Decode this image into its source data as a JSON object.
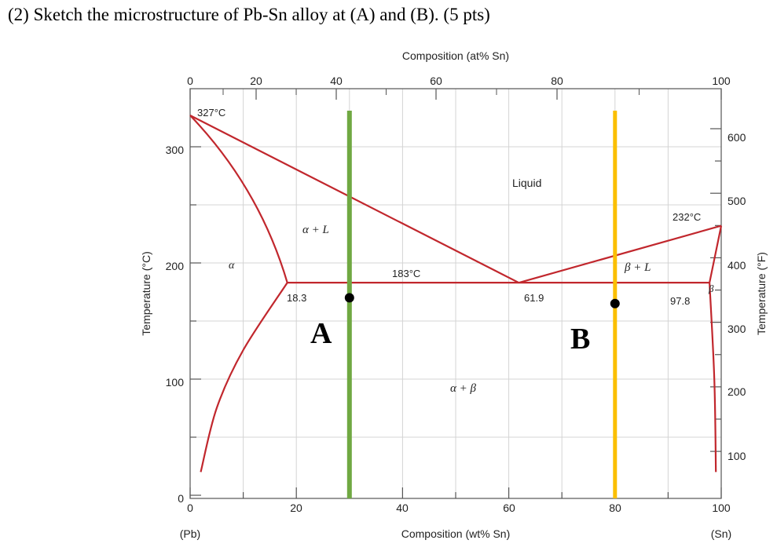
{
  "question": "(2) Sketch the microstructure of Pb-Sn alloy at (A) and (B). (5 pts)",
  "axes": {
    "top_title": "Composition (at% Sn)",
    "bottom_title": "Composition (wt% Sn)",
    "left_title": "Temperature (°C)",
    "right_title": "Temperature (°F)",
    "pb_label": "(Pb)",
    "sn_label": "(Sn)",
    "top_ticks": [
      {
        "label": "0",
        "value": 0
      },
      {
        "label": "20",
        "value": 20
      },
      {
        "label": "40",
        "value": 40
      },
      {
        "label": "60",
        "value": 60
      },
      {
        "label": "80",
        "value": 80
      },
      {
        "label": "100",
        "value": 100
      }
    ],
    "bottom_ticks": [
      "0",
      "20",
      "40",
      "60",
      "80",
      "100"
    ],
    "left_ticks": [
      "0",
      "100",
      "200",
      "300"
    ],
    "right_ticks": [
      "100",
      "200",
      "300",
      "400",
      "500",
      "600"
    ]
  },
  "labels": {
    "pb_melt": "327°C",
    "sn_melt": "232°C",
    "eutectic_temp": "183°C",
    "alpha_limit": "18.3",
    "eutectic_comp": "61.9",
    "beta_limit": "97.8",
    "liquid": "Liquid",
    "alpha_l": "α + L",
    "beta_l": "β + L",
    "alpha": "α",
    "beta": "β",
    "alpha_beta": "α + β",
    "point_a": "A",
    "point_b": "B"
  },
  "chart_data": {
    "type": "phase-diagram",
    "x_unit": "wt% Sn",
    "y_unit": "°C",
    "xlim": [
      0,
      100
    ],
    "ylim": [
      0,
      350
    ],
    "pb_melting_point": [
      0,
      327
    ],
    "sn_melting_point": [
      100,
      232
    ],
    "eutectic": {
      "temperature": 183,
      "alpha_comp": 18.3,
      "liquid_comp": 61.9,
      "beta_comp": 97.8
    },
    "liquidus_left": [
      [
        0,
        327
      ],
      [
        61.9,
        183
      ]
    ],
    "liquidus_right": [
      [
        61.9,
        183
      ],
      [
        100,
        232
      ]
    ],
    "solidus_left": [
      [
        0,
        327
      ],
      [
        18.3,
        183
      ]
    ],
    "solvus_left": [
      [
        18.3,
        183
      ],
      [
        10,
        125
      ],
      [
        5,
        75
      ],
      [
        2,
        20
      ]
    ],
    "solidus_right": [
      [
        100,
        232
      ],
      [
        97.8,
        183
      ]
    ],
    "solvus_right": [
      [
        97.8,
        183
      ],
      [
        98.7,
        100
      ],
      [
        99,
        20
      ]
    ],
    "alloys": [
      {
        "name": "A",
        "composition": 30,
        "marker_temperature": 170,
        "color": "#70a842"
      },
      {
        "name": "B",
        "composition": 80,
        "marker_temperature": 165,
        "color": "#fbbf00"
      }
    ],
    "grid": true,
    "line_color": "#c1272d"
  }
}
